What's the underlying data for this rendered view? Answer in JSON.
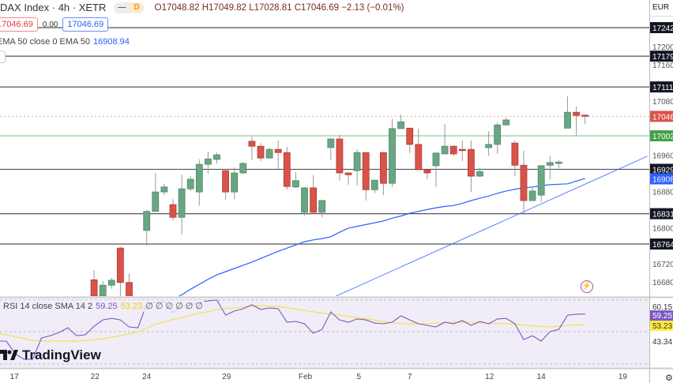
{
  "header": {
    "title": "DAX Index · 4h · XETR",
    "pill_dash": "—",
    "pill_d": "D",
    "ohlc": "O17048.82 H17049.82 L17028.81 C17046.69 −2.13 (−0.01%)",
    "sell_price": "17046.69",
    "spread": "0.00",
    "buy_price": "17046.69"
  },
  "ema_legend": {
    "label": "EMA 50 close 0 EMA 50",
    "value": "16908.94"
  },
  "rsi_legend": {
    "label": "RSI 14 close SMA 14 2",
    "rsi": "59.25",
    "sma": "53.23",
    "extra": "∅ ∅ ∅ ∅ ∅ ∅"
  },
  "currency": "EUR",
  "logo": "TradingView",
  "colors": {
    "up": "#6aa584",
    "down": "#d9534a",
    "ema": "#2962ff",
    "rsi": "#7e57c2",
    "rsi_sma": "#f5e050",
    "support": "#a5d6a7",
    "level": "#555555",
    "rsi_bg": "#f0edf8"
  },
  "chart_data": {
    "type": "candlestick",
    "price_axis": {
      "range": [
        16649,
        17265
      ],
      "ticks": [
        17200,
        17160,
        17080,
        16960,
        16880,
        16800,
        16720,
        16680
      ]
    },
    "x_ticks": [
      {
        "label": "17",
        "bar": 1.9
      },
      {
        "label": "22",
        "bar": 11.1
      },
      {
        "label": "24",
        "bar": 17
      },
      {
        "label": "29",
        "bar": 26.1
      },
      {
        "label": "Feb",
        "bar": 35.1
      },
      {
        "label": "5",
        "bar": 41.2
      },
      {
        "label": "7",
        "bar": 47
      },
      {
        "label": "12",
        "bar": 56.1
      },
      {
        "label": "14",
        "bar": 62
      },
      {
        "label": "19",
        "bar": 71.3
      }
    ],
    "candles": [
      null,
      null,
      null,
      null,
      null,
      null,
      null,
      null,
      null,
      null,
      null,
      [
        16685,
        16706,
        16640,
        16649
      ],
      [
        16649,
        16682,
        16640,
        16673
      ],
      [
        16673,
        16689,
        16665,
        16684
      ],
      [
        16755,
        16758,
        16649,
        16679
      ],
      [
        16679,
        16699,
        16640,
        16649
      ],
      null,
      [
        16794,
        16839,
        16760,
        16836
      ],
      [
        16836,
        16921,
        16836,
        16879
      ],
      [
        16879,
        16897,
        16872,
        16890
      ],
      [
        16851,
        16863,
        16816,
        16823
      ],
      [
        16823,
        16917,
        16785,
        16886
      ],
      [
        16886,
        16914,
        16881,
        16907
      ],
      [
        16879,
        16951,
        16849,
        16940
      ],
      [
        16940,
        16968,
        16919,
        16952
      ],
      [
        16951,
        16966,
        16942,
        16961
      ],
      [
        16926,
        16930,
        16862,
        16879
      ],
      [
        16879,
        16933,
        16863,
        16921
      ],
      [
        16921,
        16945,
        16919,
        16942
      ],
      [
        16991,
        17001,
        16949,
        16980
      ],
      [
        16980,
        16987,
        16947,
        16954
      ],
      [
        16954,
        16977,
        16952,
        16973
      ],
      [
        16973,
        16993,
        16930,
        16966
      ],
      [
        16966,
        16979,
        16884,
        16891
      ],
      [
        16890,
        16923,
        16888,
        16904
      ],
      [
        16834,
        16890,
        16827,
        16888
      ],
      [
        16888,
        16916,
        16832,
        16834
      ],
      [
        16834,
        16862,
        16823,
        16860
      ],
      [
        16977,
        16998,
        16949,
        16996
      ],
      [
        16996,
        17005,
        16904,
        16921
      ],
      [
        16921,
        16921,
        16895,
        16917
      ],
      [
        16926,
        16973,
        16893,
        16966
      ],
      [
        16966,
        16966,
        16860,
        16884
      ],
      [
        16884,
        16905,
        16876,
        16905
      ],
      [
        16966,
        16968,
        16872,
        16898
      ],
      [
        16898,
        17040,
        16890,
        17019
      ],
      [
        17019,
        17050,
        17019,
        17034
      ],
      [
        17020,
        17020,
        16965,
        16984
      ],
      [
        16984,
        17019,
        16928,
        16928
      ],
      [
        16928,
        16928,
        16907,
        16921
      ],
      [
        16937,
        16966,
        16890,
        16965
      ],
      [
        16963,
        17029,
        16963,
        16980
      ],
      [
        16980,
        16982,
        16958,
        16963
      ],
      [
        16973,
        16993,
        16947,
        16972
      ],
      [
        16973,
        16993,
        16879,
        16914
      ],
      [
        16914,
        16933,
        16912,
        16924
      ],
      [
        16977,
        17013,
        16959,
        16984
      ],
      [
        16984,
        17033,
        16963,
        17027
      ],
      [
        17027,
        17043,
        17027,
        17038
      ],
      [
        16987,
        16993,
        16914,
        16938
      ],
      [
        16938,
        16970,
        16832,
        16860
      ],
      [
        16860,
        16890,
        16860,
        16881
      ],
      [
        16872,
        16937,
        16857,
        16937
      ],
      [
        16938,
        16958,
        16907,
        16944
      ],
      [
        16942,
        16949,
        16931,
        16945
      ],
      [
        17020,
        17090,
        17020,
        17055
      ],
      [
        17055,
        17068,
        17003,
        17048
      ],
      [
        17048.82,
        17049.82,
        17028.81,
        17046.69
      ]
    ],
    "ema50": [
      null,
      null,
      null,
      null,
      null,
      null,
      null,
      null,
      null,
      null,
      null,
      null,
      null,
      null,
      null,
      null,
      null,
      null,
      null,
      16630,
      16641,
      16652,
      16664,
      16675,
      16686,
      16696,
      16703,
      16710,
      16717,
      16724,
      16732,
      16740,
      16748,
      16755,
      16762,
      16769,
      16773,
      16776,
      16780,
      16790,
      16799,
      16803,
      16807,
      16811,
      16815,
      16821,
      16826,
      16832,
      16836,
      16840,
      16844,
      16847,
      16849,
      16854,
      16860,
      16865,
      16870,
      16876,
      16881,
      16885,
      16888,
      16890,
      16893,
      16895,
      16896,
      16897,
      16903,
      16908.94
    ],
    "horizontal_levels": [
      17242,
      17179,
      17111,
      16929,
      16831,
      16764
    ],
    "support_level": 17003,
    "current_price": 17046,
    "ema_label": 16908,
    "trendline": {
      "start": {
        "bar": 38.6,
        "price": 16649
      },
      "end": {
        "bar": 74.1,
        "price": 16958
      }
    },
    "rsi": {
      "axis_labels": [
        "60.15",
        "43.34"
      ],
      "values": [
        43.8,
        43.8,
        36.6,
        33.5,
        33.5,
        45.6,
        46.9,
        48.7,
        51.4,
        46.9,
        47.4,
        52.3,
        55.9,
        56.8,
        55.9,
        51.9,
        51.4,
        64.9,
        65.8,
        66.3,
        60.4,
        63.6,
        64.5,
        65.8,
        66.7,
        67.2,
        58.6,
        60.9,
        62.2,
        64.5,
        61.8,
        62.7,
        62.2,
        54.6,
        55.0,
        53.7,
        48.3,
        50.5,
        60.4,
        55.9,
        54.6,
        56.4,
        55.9,
        54.1,
        53.7,
        54.6,
        58.2,
        55.9,
        53.7,
        52.8,
        51.9,
        54.6,
        53.7,
        55.5,
        52.8,
        55.0,
        53.7,
        56.4,
        56.8,
        53.7,
        44.7,
        46.9,
        43.8,
        49.2,
        50.5,
        58.6,
        59.1,
        59.25
      ],
      "sma": [
        48.3,
        47.3,
        46.3,
        45.3,
        44.2,
        44.0,
        43.8,
        43.8,
        43.8,
        43.8,
        44.2,
        44.6,
        45.1,
        46.0,
        46.9,
        48.0,
        49.2,
        51.2,
        53.3,
        54.8,
        56.0,
        57.2,
        58.4,
        59.6,
        60.6,
        61.6,
        62.3,
        62.8,
        63.2,
        63.8,
        64.0,
        63.8,
        63.5,
        62.8,
        62.0,
        61.3,
        60.5,
        59.8,
        59.1,
        58.5,
        57.9,
        57.2,
        56.6,
        55.8,
        55.0,
        54.2,
        53.7,
        53.7,
        53.7,
        53.8,
        54.0,
        54.2,
        54.4,
        54.6,
        54.5,
        54.2,
        54.0,
        53.8,
        53.7,
        53.3,
        52.9,
        52.5,
        52.1,
        51.9,
        52.3,
        52.7,
        53.0,
        53.23
      ]
    }
  }
}
